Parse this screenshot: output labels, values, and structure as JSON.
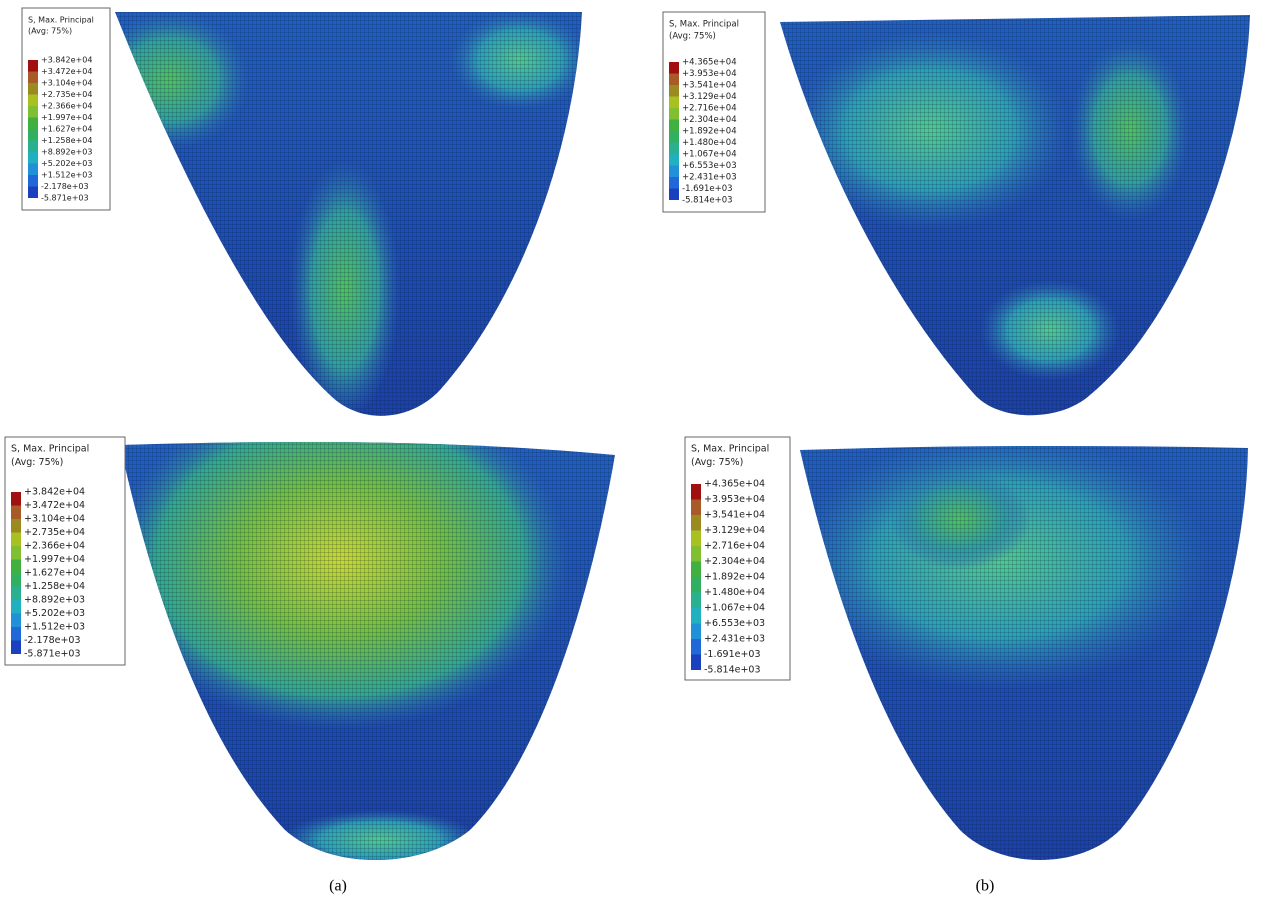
{
  "panels": [
    {
      "legend": {
        "title": "S, Max. Principal",
        "subtitle": "(Avg: 75%)",
        "labels": [
          "+3.842e+04",
          "+3.472e+04",
          "+3.104e+04",
          "+2.735e+04",
          "+2.366e+04",
          "+1.997e+04",
          "+1.627e+04",
          "+1.258e+04",
          "+8.892e+03",
          "+5.202e+03",
          "+1.512e+03",
          "-2.178e+03",
          "-5.871e+03"
        ]
      }
    },
    {
      "legend": {
        "title": "S, Max. Principal",
        "subtitle": "(Avg: 75%)",
        "labels": [
          "+4.365e+04",
          "+3.953e+04",
          "+3.541e+04",
          "+3.129e+04",
          "+2.716e+04",
          "+2.304e+04",
          "+1.892e+04",
          "+1.480e+04",
          "+1.067e+04",
          "+6.553e+03",
          "+2.431e+03",
          "-1.691e+03",
          "-5.814e+03"
        ]
      }
    },
    {
      "legend": {
        "title": "S, Max. Principal",
        "subtitle": "(Avg: 75%)",
        "labels": [
          "+3.842e+04",
          "+3.472e+04",
          "+3.104e+04",
          "+2.735e+04",
          "+2.366e+04",
          "+1.997e+04",
          "+1.627e+04",
          "+1.258e+04",
          "+8.892e+03",
          "+5.202e+03",
          "+1.512e+03",
          "-2.178e+03",
          "-5.871e+03"
        ]
      }
    },
    {
      "legend": {
        "title": "S, Max. Principal",
        "subtitle": "(Avg: 75%)",
        "labels": [
          "+4.365e+04",
          "+3.953e+04",
          "+3.541e+04",
          "+3.129e+04",
          "+2.716e+04",
          "+2.304e+04",
          "+1.892e+04",
          "+1.480e+04",
          "+1.067e+04",
          "+6.553e+03",
          "+2.431e+03",
          "-1.691e+03",
          "-5.814e+03"
        ]
      }
    }
  ],
  "captions": [
    "(a)",
    "(b)"
  ]
}
